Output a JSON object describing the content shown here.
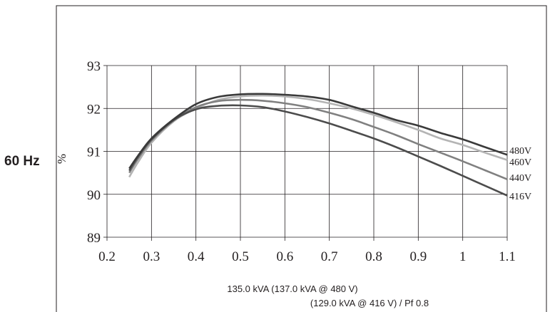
{
  "side_label": "60 Hz",
  "footer": {
    "line1": "135.0 kVA (137.0 kVA @ 480 V)",
    "line2": "(129.0 kVA @ 416 V) / Pf 0.8"
  },
  "chart_data": {
    "type": "line",
    "title": "",
    "xlabel": "",
    "ylabel": "%",
    "xlim": [
      0.2,
      1.1
    ],
    "ylim": [
      89,
      93
    ],
    "x_ticks": [
      "0.2",
      "0.3",
      "0.4",
      "0.5",
      "0.6",
      "0.7",
      "0.8",
      "0.9",
      "1",
      "1.1"
    ],
    "y_ticks": [
      "89",
      "90",
      "91",
      "92",
      "93"
    ],
    "grid": true,
    "legend": "series labels at right end of lines",
    "series": [
      {
        "name": "480V",
        "color": "#3a3a3a",
        "x": [
          0.25,
          0.27,
          0.3,
          0.35,
          0.4,
          0.45,
          0.5,
          0.55,
          0.6,
          0.65,
          0.7,
          0.75,
          0.8,
          0.85,
          0.9,
          0.95,
          1.0,
          1.05,
          1.1
        ],
        "y": [
          90.6,
          90.9,
          91.3,
          91.75,
          92.1,
          92.27,
          92.33,
          92.34,
          92.32,
          92.28,
          92.2,
          92.05,
          91.9,
          91.73,
          91.6,
          91.43,
          91.28,
          91.1,
          90.92
        ]
      },
      {
        "name": "460V",
        "color": "#b4b4b4",
        "x": [
          0.25,
          0.27,
          0.3,
          0.35,
          0.4,
          0.45,
          0.5,
          0.55,
          0.6,
          0.65,
          0.7,
          0.75,
          0.8,
          0.85,
          0.9,
          0.95,
          1.0,
          1.05,
          1.1
        ],
        "y": [
          90.4,
          90.75,
          91.2,
          91.7,
          92.0,
          92.2,
          92.28,
          92.3,
          92.28,
          92.22,
          92.12,
          92.0,
          91.85,
          91.68,
          91.5,
          91.3,
          91.15,
          90.97,
          90.8
        ]
      },
      {
        "name": "440V",
        "color": "#808080",
        "x": [
          0.25,
          0.27,
          0.3,
          0.35,
          0.4,
          0.45,
          0.5,
          0.55,
          0.6,
          0.65,
          0.7,
          0.75,
          0.8,
          0.85,
          0.9,
          0.95,
          1.0,
          1.05,
          1.1
        ],
        "y": [
          90.5,
          90.83,
          91.25,
          91.72,
          92.03,
          92.17,
          92.2,
          92.18,
          92.12,
          92.03,
          91.9,
          91.75,
          91.57,
          91.38,
          91.17,
          90.97,
          90.77,
          90.56,
          90.35
        ]
      },
      {
        "name": "416V",
        "color": "#4c4c4c",
        "x": [
          0.25,
          0.27,
          0.3,
          0.35,
          0.4,
          0.45,
          0.5,
          0.55,
          0.6,
          0.65,
          0.7,
          0.75,
          0.8,
          0.85,
          0.9,
          0.95,
          1.0,
          1.05,
          1.1
        ],
        "y": [
          90.55,
          90.88,
          91.28,
          91.73,
          91.98,
          92.06,
          92.07,
          92.03,
          91.93,
          91.8,
          91.65,
          91.48,
          91.3,
          91.1,
          90.88,
          90.66,
          90.43,
          90.2,
          89.97
        ]
      }
    ]
  }
}
